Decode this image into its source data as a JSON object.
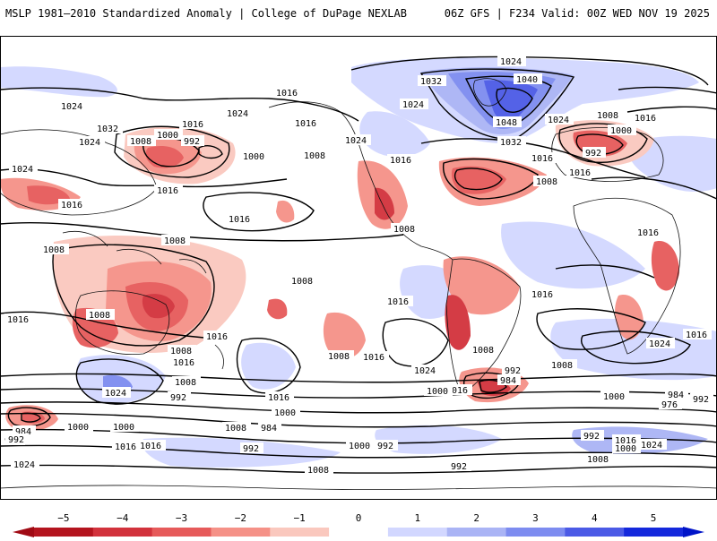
{
  "header": {
    "title_left": "MSLP 1981–2010 Standardized Anomaly | College of DuPage NEXLAB",
    "title_right": "06Z GFS | F234 Valid: 00Z WED NOV 19 2025"
  },
  "map": {
    "contour_labels": [
      {
        "id": "l1",
        "text": "1024"
      },
      {
        "id": "l2",
        "text": "1016"
      },
      {
        "id": "l3",
        "text": "1032"
      },
      {
        "id": "l4",
        "text": "1024"
      },
      {
        "id": "l5",
        "text": "1016"
      },
      {
        "id": "l6",
        "text": "1008"
      },
      {
        "id": "l7",
        "text": "1000"
      },
      {
        "id": "l8",
        "text": "992"
      },
      {
        "id": "l9",
        "text": "1024"
      },
      {
        "id": "l10",
        "text": "1016"
      },
      {
        "id": "l11",
        "text": "1016"
      },
      {
        "id": "l12",
        "text": "1000"
      },
      {
        "id": "l13",
        "text": "1008"
      },
      {
        "id": "l14",
        "text": "1016"
      },
      {
        "id": "l15",
        "text": "1016"
      },
      {
        "id": "l16",
        "text": "1024"
      },
      {
        "id": "l17",
        "text": "1032"
      },
      {
        "id": "l18",
        "text": "1040"
      },
      {
        "id": "l19",
        "text": "1024"
      },
      {
        "id": "l20",
        "text": "1048"
      },
      {
        "id": "l21",
        "text": "1024"
      },
      {
        "id": "l22",
        "text": "1032"
      },
      {
        "id": "l23",
        "text": "1024"
      },
      {
        "id": "l24",
        "text": "1016"
      },
      {
        "id": "l25",
        "text": "1016"
      },
      {
        "id": "l26",
        "text": "1016"
      },
      {
        "id": "l27",
        "text": "1008"
      },
      {
        "id": "l28",
        "text": "1008"
      },
      {
        "id": "l29",
        "text": "1008"
      },
      {
        "id": "l30",
        "text": "1016"
      },
      {
        "id": "l31",
        "text": "1000"
      },
      {
        "id": "l32",
        "text": "992"
      },
      {
        "id": "l33",
        "text": "1016"
      },
      {
        "id": "l34",
        "text": "1016"
      },
      {
        "id": "l35",
        "text": "1008"
      },
      {
        "id": "l36",
        "text": "1008"
      },
      {
        "id": "l37",
        "text": "1008"
      },
      {
        "id": "l38",
        "text": "1016"
      },
      {
        "id": "l39",
        "text": "1016"
      },
      {
        "id": "l40",
        "text": "1016"
      },
      {
        "id": "l41",
        "text": "1016"
      },
      {
        "id": "l42",
        "text": "1008"
      },
      {
        "id": "l43",
        "text": "1008"
      },
      {
        "id": "l44",
        "text": "1016"
      },
      {
        "id": "l45",
        "text": "1008"
      },
      {
        "id": "l46",
        "text": "1016"
      },
      {
        "id": "l47",
        "text": "1024"
      },
      {
        "id": "l48",
        "text": "1016"
      },
      {
        "id": "l49",
        "text": "1008"
      },
      {
        "id": "l50",
        "text": "1024"
      },
      {
        "id": "l51",
        "text": "1008"
      },
      {
        "id": "l52",
        "text": "1000"
      },
      {
        "id": "l53",
        "text": "1016"
      },
      {
        "id": "l54",
        "text": "992"
      },
      {
        "id": "l55",
        "text": "992"
      },
      {
        "id": "l56",
        "text": "984"
      },
      {
        "id": "l57",
        "text": "1000"
      },
      {
        "id": "l58",
        "text": "1008"
      },
      {
        "id": "l59",
        "text": "1000"
      },
      {
        "id": "l60",
        "text": "1024"
      },
      {
        "id": "l61",
        "text": "992"
      },
      {
        "id": "l62",
        "text": "1008"
      },
      {
        "id": "l63",
        "text": "1000"
      },
      {
        "id": "l64",
        "text": "984"
      },
      {
        "id": "l65",
        "text": "992"
      },
      {
        "id": "l66",
        "text": "1000"
      },
      {
        "id": "l67",
        "text": "992"
      },
      {
        "id": "l68",
        "text": "1016"
      },
      {
        "id": "l69",
        "text": "1000"
      },
      {
        "id": "l70",
        "text": "984"
      },
      {
        "id": "l71",
        "text": "1024"
      },
      {
        "id": "l72",
        "text": "1008"
      },
      {
        "id": "l73",
        "text": "992"
      },
      {
        "id": "l74",
        "text": "1000"
      },
      {
        "id": "l75",
        "text": "984"
      },
      {
        "id": "l76",
        "text": "976"
      },
      {
        "id": "l77",
        "text": "992"
      },
      {
        "id": "l78",
        "text": "992"
      },
      {
        "id": "l79",
        "text": "1016"
      },
      {
        "id": "l80",
        "text": "1024"
      },
      {
        "id": "l81",
        "text": "1008"
      },
      {
        "id": "l82",
        "text": "992"
      },
      {
        "id": "l83",
        "text": "1016"
      },
      {
        "id": "l84",
        "text": "1024"
      }
    ]
  },
  "colorbar": {
    "ticks": [
      "−5",
      "−4",
      "−3",
      "−2",
      "−1",
      "0",
      "1",
      "2",
      "3",
      "4",
      "5"
    ],
    "colors": [
      "#b4141e",
      "#d2323c",
      "#e65a5a",
      "#f59187",
      "#fac8be",
      "#ffffff",
      "#d2d7ff",
      "#aab4f5",
      "#7d8cf0",
      "#4b5ae6",
      "#1428dc"
    ]
  }
}
